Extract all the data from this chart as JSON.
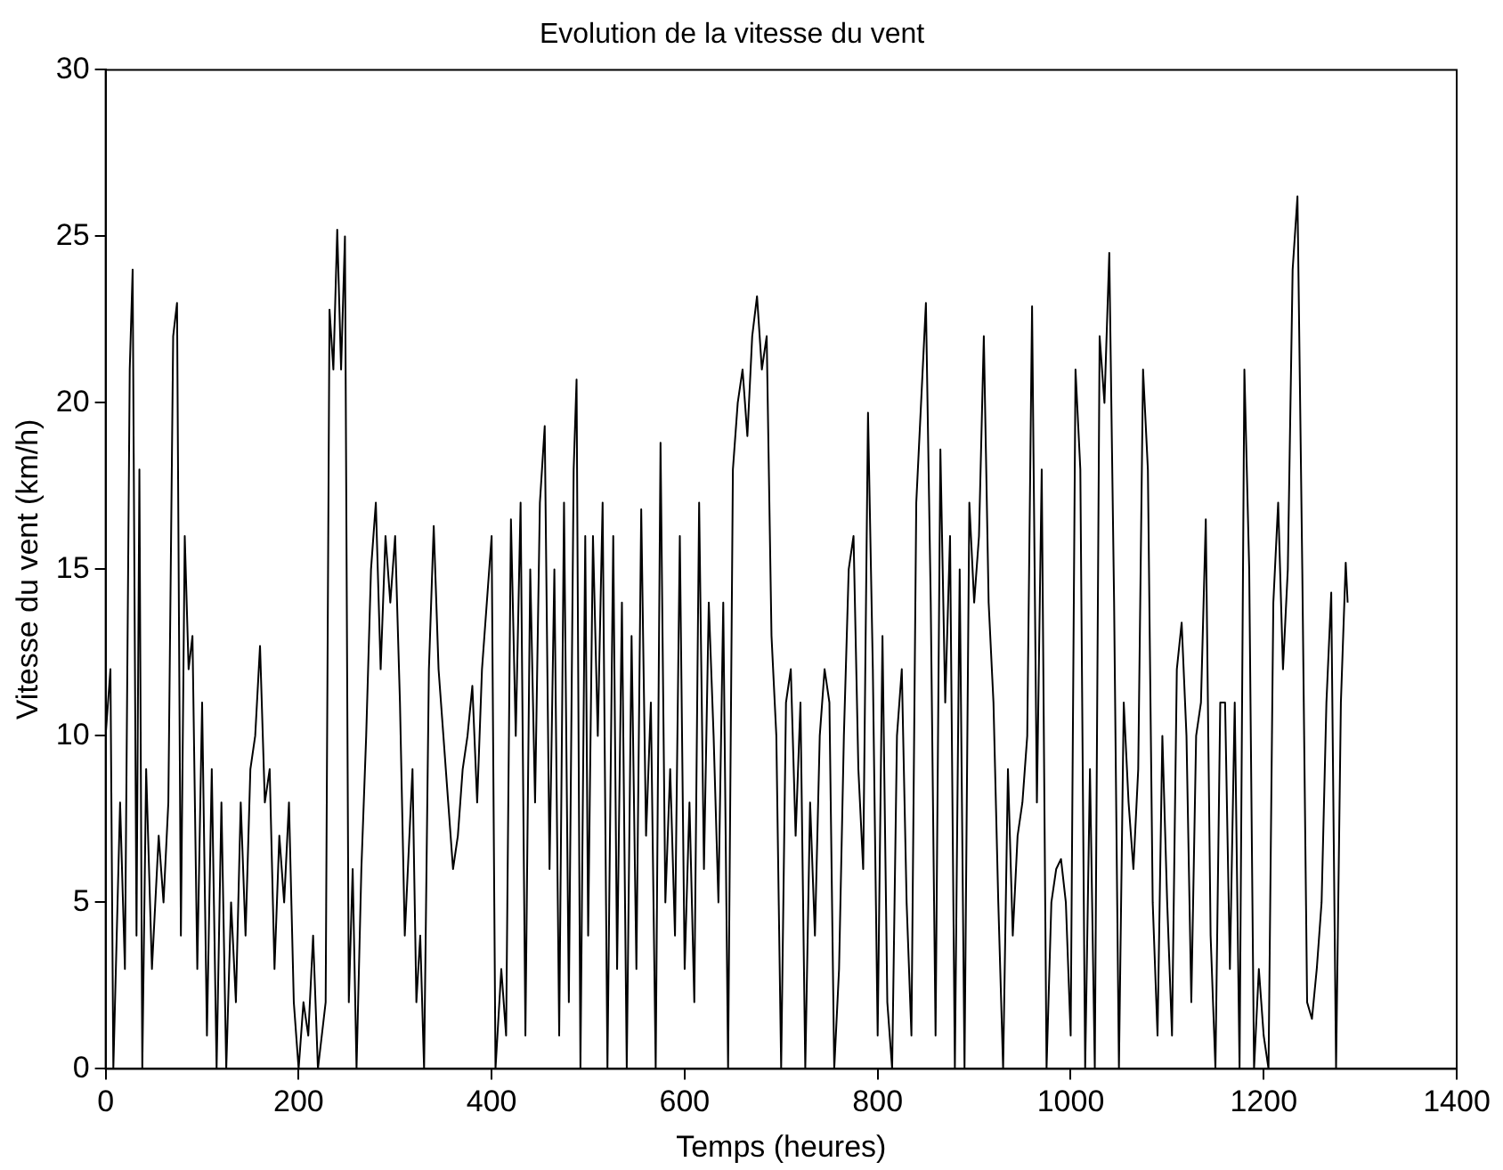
{
  "chart_data": {
    "type": "line",
    "title": "Evolution de la vitesse du vent",
    "xlabel": "Temps (heures)",
    "ylabel": "Vitesse du vent (km/h)",
    "xlim": [
      0,
      1400
    ],
    "xticks": [
      0,
      200,
      400,
      600,
      800,
      1000,
      1200,
      1400
    ],
    "ylim": [
      0,
      30
    ],
    "yticks": [
      0,
      5,
      10,
      15,
      20,
      25,
      30
    ],
    "grid": false,
    "legend": false,
    "marker": "none",
    "line_style": "solid",
    "series": [
      {
        "color": "#000000",
        "x": [
          0,
          5,
          8,
          15,
          20,
          25,
          28,
          32,
          35,
          38,
          42,
          48,
          55,
          60,
          65,
          70,
          74,
          78,
          82,
          86,
          90,
          95,
          100,
          105,
          110,
          115,
          120,
          125,
          130,
          135,
          140,
          145,
          150,
          155,
          160,
          165,
          170,
          175,
          180,
          185,
          190,
          195,
          200,
          205,
          210,
          215,
          220,
          228,
          232,
          236,
          240,
          244,
          248,
          252,
          256,
          260,
          265,
          270,
          275,
          280,
          285,
          290,
          295,
          300,
          305,
          310,
          318,
          322,
          326,
          330,
          335,
          340,
          345,
          350,
          355,
          360,
          365,
          370,
          375,
          380,
          385,
          390,
          395,
          400,
          404,
          410,
          415,
          420,
          425,
          430,
          435,
          440,
          445,
          450,
          455,
          460,
          465,
          470,
          475,
          480,
          485,
          488,
          492,
          497,
          500,
          505,
          510,
          515,
          520,
          526,
          530,
          535,
          540,
          545,
          550,
          555,
          560,
          565,
          570,
          575,
          580,
          585,
          590,
          595,
          600,
          605,
          610,
          615,
          620,
          625,
          630,
          635,
          640,
          645,
          650,
          655,
          660,
          665,
          670,
          675,
          680,
          685,
          690,
          695,
          700,
          705,
          710,
          715,
          720,
          725,
          730,
          735,
          740,
          745,
          750,
          755,
          760,
          765,
          770,
          775,
          780,
          785,
          790,
          795,
          800,
          805,
          810,
          815,
          820,
          825,
          830,
          835,
          840,
          845,
          850,
          855,
          860,
          865,
          870,
          875,
          880,
          885,
          890,
          895,
          900,
          905,
          910,
          915,
          920,
          925,
          930,
          935,
          940,
          945,
          950,
          955,
          960,
          965,
          970,
          975,
          980,
          985,
          990,
          995,
          1000,
          1005,
          1010,
          1015,
          1020,
          1025,
          1030,
          1035,
          1040,
          1045,
          1050,
          1055,
          1060,
          1065,
          1070,
          1075,
          1080,
          1085,
          1090,
          1095,
          1100,
          1105,
          1110,
          1115,
          1120,
          1125,
          1130,
          1135,
          1140,
          1145,
          1150,
          1155,
          1160,
          1165,
          1170,
          1175,
          1180,
          1185,
          1190,
          1195,
          1200,
          1205,
          1210,
          1215,
          1220,
          1225,
          1230,
          1235,
          1240,
          1245,
          1250,
          1255,
          1260,
          1265,
          1270,
          1275,
          1280,
          1285,
          1287
        ],
        "values": [
          10,
          12,
          0,
          8,
          3,
          21,
          24,
          4,
          18,
          0,
          9,
          3,
          7,
          5,
          8,
          22,
          23,
          4,
          16,
          12,
          13,
          3,
          11,
          1,
          9,
          0,
          8,
          0,
          5,
          2,
          8,
          4,
          9,
          10,
          12.7,
          8,
          9,
          3,
          7,
          5,
          8,
          2,
          0,
          2,
          1,
          4,
          0,
          2,
          22.8,
          21,
          25.2,
          21,
          25,
          2,
          6,
          0,
          6,
          10,
          15,
          17,
          12,
          16,
          14,
          16,
          11,
          4,
          9,
          2,
          4,
          0,
          12,
          16.3,
          12,
          10,
          8,
          6,
          7,
          9,
          10,
          11.5,
          8,
          12,
          14,
          16,
          0,
          3,
          1,
          16.5,
          10,
          17,
          1,
          15,
          8,
          17,
          19.3,
          6,
          15,
          1,
          17,
          2,
          18,
          20.7,
          0,
          16,
          4,
          16,
          10,
          17,
          0,
          16,
          3,
          14,
          0,
          13,
          3,
          16.8,
          7,
          11,
          0,
          18.8,
          5,
          9,
          4,
          16,
          3,
          8,
          2,
          17,
          6,
          14,
          10,
          5,
          14,
          0,
          18,
          20,
          21,
          19,
          22,
          23.2,
          21,
          22,
          13,
          10,
          0,
          11,
          12,
          7,
          11,
          0,
          8,
          4,
          10,
          12,
          11,
          0,
          3,
          10,
          15,
          16,
          9,
          6,
          19.7,
          12,
          1,
          13,
          2,
          0,
          10,
          12,
          5,
          1,
          17,
          20,
          23,
          14,
          1,
          18.6,
          11,
          16,
          0,
          15,
          0,
          17,
          14,
          16,
          22,
          14,
          11,
          5,
          0,
          9,
          4,
          7,
          8,
          10,
          22.9,
          8,
          18,
          0,
          5,
          6,
          6.3,
          5,
          1,
          21,
          18,
          0,
          9,
          0,
          22,
          20,
          24.5,
          14,
          0,
          11,
          8,
          6,
          9,
          21,
          18,
          5,
          1,
          10,
          5,
          1,
          12,
          13.4,
          10,
          2,
          10,
          11,
          16.5,
          4,
          0,
          11,
          11,
          3,
          11,
          0,
          21,
          15,
          0,
          3,
          1,
          0,
          14,
          17,
          12,
          15,
          24,
          26.2,
          15,
          2,
          1.5,
          3,
          5,
          11,
          14.3,
          0,
          11,
          15.2,
          14
        ]
      }
    ]
  }
}
